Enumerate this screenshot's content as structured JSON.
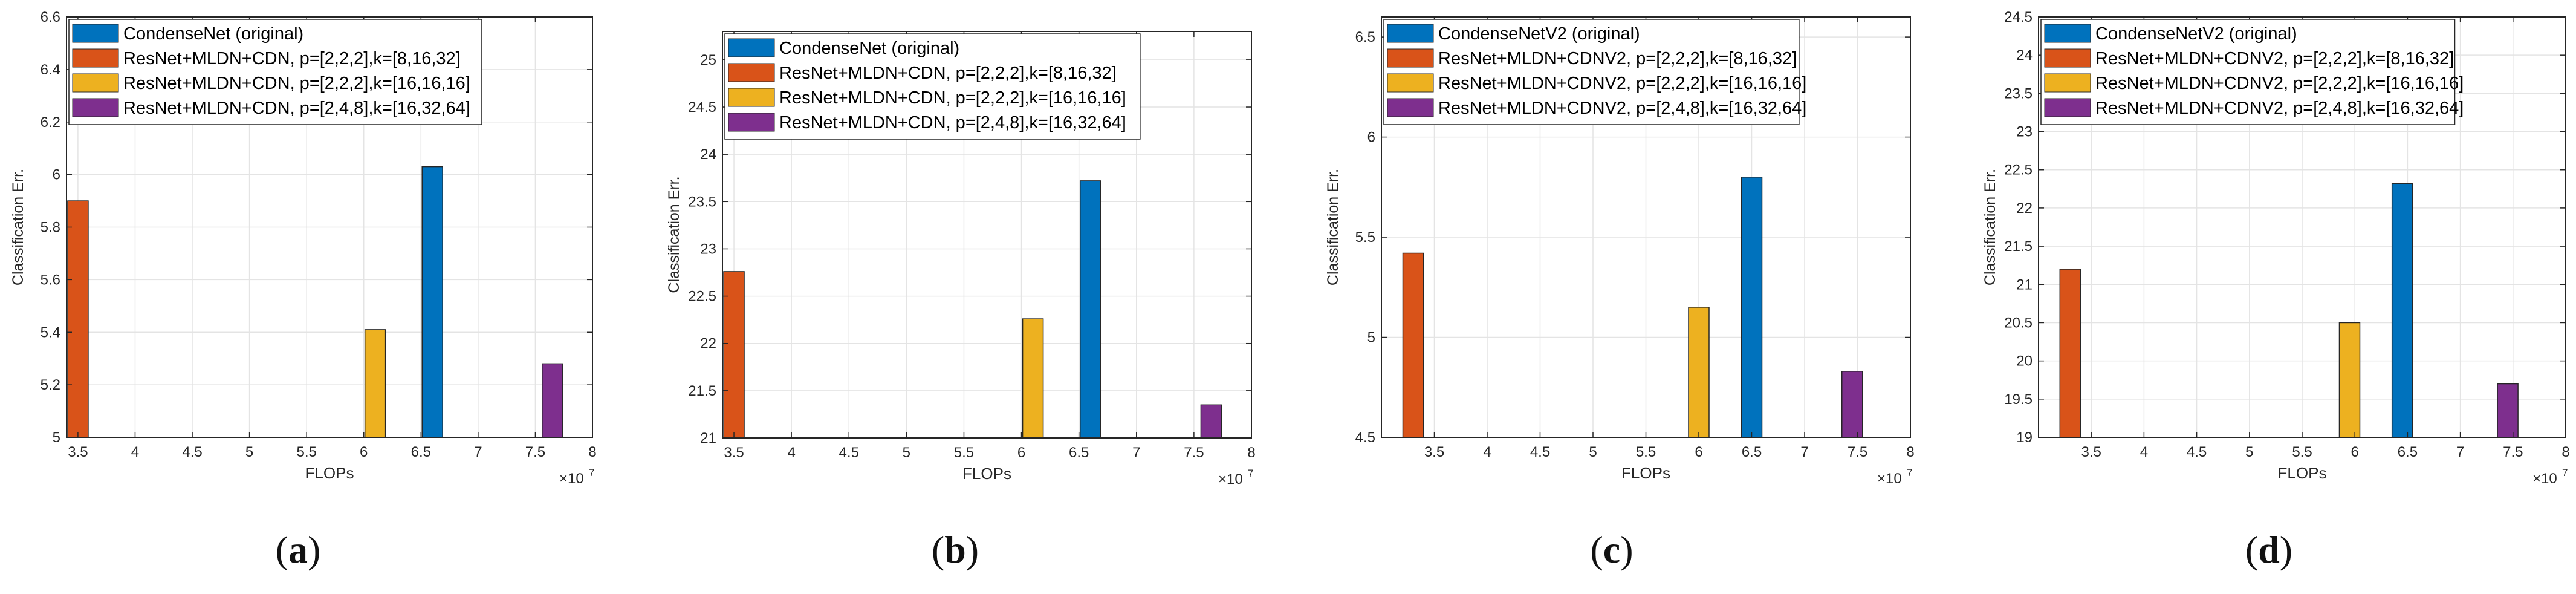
{
  "chart_data": [
    {
      "type": "bar",
      "panel": "(a)",
      "panel_letter": "a",
      "xlabel": "FLOPs",
      "ylabel": "Classification Err.",
      "x_exponent": "×10",
      "x_exponent_power": "7",
      "xlim": [
        3.4,
        8
      ],
      "ylim": [
        5,
        6.6
      ],
      "xticks": [
        3.5,
        4,
        4.5,
        5,
        5.5,
        6,
        6.5,
        7,
        7.5,
        8
      ],
      "xtick_labels": [
        "3.5",
        "4",
        "4.5",
        "5",
        "5.5",
        "6",
        "6.5",
        "7",
        "7.5",
        "8"
      ],
      "yticks": [
        5,
        5.2,
        5.4,
        5.6,
        5.8,
        6,
        6.2,
        6.4,
        6.6
      ],
      "ytick_labels": [
        "5",
        "5.2",
        "5.4",
        "5.6",
        "5.8",
        "6",
        "6.2",
        "6.4",
        "6.6"
      ],
      "grid": true,
      "legend_position": "top",
      "series": [
        {
          "name": "CondenseNet (original)",
          "color": "#0072BD",
          "x": 6.6,
          "value": 6.03
        },
        {
          "name": "ResNet+MLDN+CDN, p=[2,2,2],k=[8,16,32]",
          "color": "#D95319",
          "x": 3.5,
          "value": 5.9
        },
        {
          "name": "ResNet+MLDN+CDN, p=[2,2,2],k=[16,16,16]",
          "color": "#EDB120",
          "x": 6.1,
          "value": 5.41
        },
        {
          "name": "ResNet+MLDN+CDN, p=[2,4,8],k=[16,32,64]",
          "color": "#7E2F8E",
          "x": 7.65,
          "value": 5.28
        }
      ]
    },
    {
      "type": "bar",
      "panel": "(b)",
      "panel_letter": "b",
      "xlabel": "FLOPs",
      "ylabel": "Classification Err.",
      "x_exponent": "×10",
      "x_exponent_power": "7",
      "xlim": [
        3.4,
        8
      ],
      "ylim": [
        21,
        25.3
      ],
      "xticks": [
        3.5,
        4,
        4.5,
        5,
        5.5,
        6,
        6.5,
        7,
        7.5,
        8
      ],
      "xtick_labels": [
        "3.5",
        "4",
        "4.5",
        "5",
        "5.5",
        "6",
        "6.5",
        "7",
        "7.5",
        "8"
      ],
      "yticks": [
        21,
        21.5,
        22,
        22.5,
        23,
        23.5,
        24,
        24.5,
        25
      ],
      "ytick_labels": [
        "21",
        "21.5",
        "22",
        "22.5",
        "23",
        "23.5",
        "24",
        "24.5",
        "25"
      ],
      "grid": true,
      "legend_position": "top",
      "series": [
        {
          "name": "CondenseNet (original)",
          "color": "#0072BD",
          "x": 6.6,
          "value": 23.72
        },
        {
          "name": "ResNet+MLDN+CDN, p=[2,2,2],k=[8,16,32]",
          "color": "#D95319",
          "x": 3.5,
          "value": 22.76
        },
        {
          "name": "ResNet+MLDN+CDN, p=[2,2,2],k=[16,16,16]",
          "color": "#EDB120",
          "x": 6.1,
          "value": 22.26
        },
        {
          "name": "ResNet+MLDN+CDN, p=[2,4,8],k=[16,32,64]",
          "color": "#7E2F8E",
          "x": 7.65,
          "value": 21.35
        }
      ]
    },
    {
      "type": "bar",
      "panel": "(c)",
      "panel_letter": "c",
      "xlabel": "FLOPs",
      "ylabel": "Classification Err.",
      "x_exponent": "×10",
      "x_exponent_power": "7",
      "xlim": [
        3,
        8
      ],
      "ylim": [
        4.5,
        6.6
      ],
      "xticks": [
        3.5,
        4,
        4.5,
        5,
        5.5,
        6,
        6.5,
        7,
        7.5,
        8
      ],
      "xtick_labels": [
        "3.5",
        "4",
        "4.5",
        "5",
        "5.5",
        "6",
        "6.5",
        "7",
        "7.5",
        "8"
      ],
      "yticks": [
        4.5,
        5,
        5.5,
        6,
        6.5
      ],
      "ytick_labels": [
        "4.5",
        "5",
        "5.5",
        "6",
        "6.5"
      ],
      "grid": true,
      "legend_position": "top",
      "series": [
        {
          "name": "CondenseNetV2 (original)",
          "color": "#0072BD",
          "x": 6.5,
          "value": 5.8
        },
        {
          "name": "ResNet+MLDN+CDNV2, p=[2,2,2],k=[8,16,32]",
          "color": "#D95319",
          "x": 3.3,
          "value": 5.42
        },
        {
          "name": "ResNet+MLDN+CDNV2, p=[2,2,2],k=[16,16,16]",
          "color": "#EDB120",
          "x": 6.0,
          "value": 5.15
        },
        {
          "name": "ResNet+MLDN+CDNV2, p=[2,4,8],k=[16,32,64]",
          "color": "#7E2F8E",
          "x": 7.45,
          "value": 4.83
        }
      ]
    },
    {
      "type": "bar",
      "panel": "(d)",
      "panel_letter": "d",
      "xlabel": "FLOPs",
      "ylabel": "Classification Err.",
      "x_exponent": "×10",
      "x_exponent_power": "7",
      "xlim": [
        3,
        8
      ],
      "ylim": [
        19,
        24.5
      ],
      "xticks": [
        3.5,
        4,
        4.5,
        5,
        5.5,
        6,
        6.5,
        7,
        7.5,
        8
      ],
      "xtick_labels": [
        "3.5",
        "4",
        "4.5",
        "5",
        "5.5",
        "6",
        "6.5",
        "7",
        "7.5",
        "8"
      ],
      "yticks": [
        19,
        19.5,
        20,
        20.5,
        21,
        21.5,
        22,
        22.5,
        23,
        23.5,
        24,
        24.5
      ],
      "ytick_labels": [
        "19",
        "19.5",
        "20",
        "20.5",
        "21",
        "21.5",
        "22",
        "22.5",
        "23",
        "23.5",
        "24",
        "24.5"
      ],
      "grid": true,
      "legend_position": "top",
      "series": [
        {
          "name": "CondenseNetV2 (original)",
          "color": "#0072BD",
          "x": 6.45,
          "value": 22.32
        },
        {
          "name": "ResNet+MLDN+CDNV2, p=[2,2,2],k=[8,16,32]",
          "color": "#D95319",
          "x": 3.3,
          "value": 21.2
        },
        {
          "name": "ResNet+MLDN+CDNV2, p=[2,2,2],k=[16,16,16]",
          "color": "#EDB120",
          "x": 5.95,
          "value": 20.5
        },
        {
          "name": "ResNet+MLDN+CDNV2, p=[2,4,8],k=[16,32,64]",
          "color": "#7E2F8E",
          "x": 7.45,
          "value": 19.7
        }
      ]
    }
  ]
}
